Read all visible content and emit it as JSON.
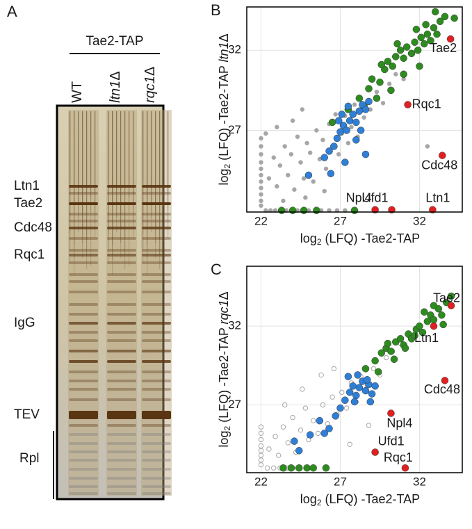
{
  "gel": {
    "panel_label": "A",
    "header": "Tae2-TAP",
    "lanes": [
      {
        "name": "WT"
      },
      {
        "italic": "ltn1",
        "suffix": "Δ"
      },
      {
        "italic": "rqc1",
        "suffix": "Δ"
      }
    ],
    "bands": [
      "Ltn1",
      "Tae2",
      "Cdc48",
      "Rqc1",
      "IgG",
      "TEV",
      "Rpl"
    ]
  },
  "chart_data": [
    {
      "type": "scatter",
      "panel_label": "B",
      "x_label": {
        "base": "log",
        "sub": "2",
        "text": " (LFQ) -Tae2-TAP"
      },
      "y_label": {
        "base": "log",
        "sub": "2",
        "text": " (LFQ) -Tae2-TAP ",
        "italic": "ltn1",
        "suffix": "Δ"
      },
      "xlim": [
        21.1,
        34.7
      ],
      "ylim": [
        21.9,
        34.7
      ],
      "xticks": [
        22,
        27,
        32
      ],
      "yticks": [
        27,
        32
      ],
      "grid": true,
      "series": [
        {
          "color": "#a6a6a6",
          "marker": "filled",
          "x": [
            22,
            22,
            22,
            22,
            22,
            22,
            22,
            22,
            22,
            22,
            22,
            22.3,
            22.6,
            22.9,
            23.2,
            23.6,
            24.3,
            25,
            25.8,
            26.3,
            26.8,
            27.3,
            22.5,
            22.8,
            23,
            23.2,
            23.5,
            23.7,
            23.9,
            24.1,
            24.3,
            24.5,
            24.7,
            24.9,
            25.1,
            25.3,
            25.5,
            25.7,
            25.9,
            26.1,
            26.3,
            26.5,
            26.7,
            26.9,
            27.1,
            27.3,
            27.5,
            27.7,
            27.9,
            28.1,
            28.5,
            28.9,
            29.3,
            29.7,
            30.1,
            30.5,
            31,
            22.3,
            23,
            24,
            24.6,
            23.4,
            24.8,
            26,
            32.5
          ],
          "values": [
            22.3,
            22.6,
            23,
            23.4,
            23.8,
            24.2,
            24.6,
            25,
            25.5,
            26,
            26.5,
            22,
            22,
            22,
            22,
            22,
            22,
            22,
            22,
            22,
            22,
            22,
            24,
            25.3,
            23.5,
            24.8,
            26,
            24.2,
            25.5,
            23.3,
            26.6,
            25,
            24,
            26.2,
            25.6,
            23.8,
            27,
            25.2,
            26.4,
            24.6,
            27.4,
            26,
            28,
            25.5,
            26.8,
            27.9,
            26.2,
            27.2,
            28.6,
            26.6,
            27.8,
            28.3,
            29.4,
            28.7,
            29.9,
            30.5,
            30.2,
            26.8,
            27.2,
            27.6,
            28.3,
            22.6,
            22.8,
            23.2,
            26
          ]
        },
        {
          "color": "#2e8b1f",
          "marker": "filled",
          "x": [
            26.5,
            27.5,
            28.2,
            28.8,
            29,
            29.5,
            29.8,
            30,
            30.3,
            30.5,
            30.8,
            31,
            31.2,
            31.5,
            31.7,
            31.9,
            32.1,
            32.3,
            32.5,
            32.7,
            32.9,
            33.1,
            33.3,
            33.6,
            34.2,
            32,
            31,
            30.2,
            29.3,
            28.5,
            31.8,
            32.4,
            33,
            30.6,
            29.6,
            23.3,
            24,
            24.7,
            25.5,
            27.9
          ],
          "values": [
            27.5,
            28.3,
            29,
            29.6,
            30.2,
            30,
            30.8,
            31.3,
            31,
            31.6,
            32,
            31.5,
            32.2,
            31.8,
            32.5,
            32,
            32.8,
            32.4,
            33,
            32.6,
            33.4,
            33,
            33.8,
            34.1,
            34,
            31,
            30.5,
            29.5,
            29,
            28.5,
            33.3,
            33.6,
            34.4,
            32.4,
            31.1,
            22,
            22,
            22,
            22,
            22
          ]
        },
        {
          "color": "#2f7fd6",
          "marker": "filled",
          "x": [
            26,
            26.3,
            26.6,
            26.8,
            27,
            27.2,
            27.4,
            27.6,
            27.8,
            28,
            28.2,
            28.4,
            28.6,
            28.8,
            27.1,
            27.5,
            26.9,
            28,
            28.6,
            26.4,
            25,
            27.3,
            28.3
          ],
          "values": [
            25.3,
            25.7,
            26,
            26.5,
            26.9,
            27.3,
            27,
            27.6,
            28,
            27.5,
            28.2,
            28.6,
            28.3,
            28.8,
            28,
            28.5,
            27.6,
            26.4,
            25.5,
            24.3,
            24.2,
            25,
            27
          ]
        },
        {
          "color": "#e02020",
          "marker": "filled",
          "x": [
            33.96,
            31.26,
            33.44,
            29.2,
            30.25,
            32.83
          ],
          "values": [
            32.7,
            28.6,
            25.43,
            22.04,
            22.04,
            22.04
          ],
          "labels": [
            "Tae2",
            "Rqc1",
            "Cdc48",
            "Npl4",
            "Ufd1",
            "Ltn1"
          ]
        }
      ]
    },
    {
      "type": "scatter",
      "panel_label": "C",
      "x_label": {
        "base": "log",
        "sub": "2",
        "text": " (LFQ) -Tae2-TAP"
      },
      "y_label": {
        "base": "log",
        "sub": "2",
        "text": " (LFQ) -Tae2-TAP ",
        "italic": "rqc1",
        "suffix": "Δ"
      },
      "xlim": [
        21.1,
        34.7
      ],
      "ylim": [
        22.7,
        35.8
      ],
      "xticks": [
        22,
        27,
        32
      ],
      "yticks": [
        27,
        32
      ],
      "grid": true,
      "series": [
        {
          "color": "#a6a6a6",
          "marker": "open",
          "x": [
            22,
            22,
            22,
            22,
            22,
            22,
            22,
            22,
            22.4,
            22.8,
            23.2,
            23.6,
            24,
            24.4,
            22.5,
            22.9,
            23.1,
            23.4,
            23.7,
            24,
            24.2,
            24.5,
            24.8,
            25,
            25.3,
            25.6,
            25.9,
            26.2,
            26.5,
            26.8,
            27.1,
            27.4,
            27.7,
            28,
            28.3,
            28.7,
            29.1,
            29.5,
            29.9,
            30.3,
            30.8,
            31.3,
            23.5,
            24.6,
            25.8,
            26.6,
            27.6,
            28.8
          ],
          "values": [
            23.2,
            23.5,
            23.8,
            24.1,
            24.4,
            24.8,
            25.2,
            25.6,
            23,
            23,
            23,
            23,
            23,
            23,
            24.2,
            25,
            23.8,
            25.6,
            24.6,
            26.2,
            24,
            25.4,
            26.8,
            24.8,
            26,
            25.2,
            27,
            25.8,
            27.5,
            26.4,
            27.8,
            26.8,
            28.4,
            27.2,
            28.8,
            28.2,
            29.3,
            28.9,
            30,
            30.4,
            30.9,
            31.4,
            27,
            28,
            28.9,
            29.3,
            24.5,
            25.7
          ]
        },
        {
          "color": "#2e8b1f",
          "marker": "filled",
          "x": [
            28.6,
            29.2,
            29.6,
            29.9,
            30.2,
            30.5,
            30.8,
            31,
            31.3,
            31.5,
            31.8,
            32,
            32.2,
            32.5,
            32.7,
            32.9,
            33.2,
            33.4,
            33.7,
            34,
            30.4,
            31.1,
            31.7,
            32.3,
            32.9,
            33.5,
            29.4,
            30,
            23.4,
            23.9,
            24.4,
            24.9,
            25.3,
            26.1
          ],
          "values": [
            29.3,
            29.8,
            30.3,
            30.6,
            30.4,
            31,
            31.2,
            30.8,
            31.5,
            31.2,
            31.8,
            32,
            31.6,
            32.3,
            32.7,
            32.4,
            33.1,
            32.7,
            33.5,
            33.9,
            29.9,
            30.6,
            31.4,
            32.9,
            33.3,
            32.1,
            29.1,
            30.9,
            23,
            23,
            23,
            23,
            23,
            23
          ]
        },
        {
          "color": "#2f7fd6",
          "marker": "filled",
          "x": [
            26.7,
            27,
            27.3,
            27.6,
            27.8,
            28,
            28.2,
            28.4,
            28.6,
            28.8,
            29,
            29.2,
            27.5,
            28.1,
            28.7,
            26.3,
            26,
            25.7,
            25.1,
            24.1,
            24.4,
            27.9,
            28.9
          ],
          "values": [
            26.3,
            26.8,
            27.3,
            27.8,
            28.2,
            27.6,
            28.1,
            28.5,
            27.9,
            28.3,
            27.7,
            28.2,
            28.8,
            28.9,
            28.6,
            25.5,
            25.2,
            26,
            25.1,
            24.7,
            24.1,
            27.2,
            27.2
          ]
        },
        {
          "color": "#e02020",
          "marker": "filled",
          "x": [
            34,
            32.9,
            33.6,
            30.2,
            29.2,
            31.1
          ],
          "values": [
            33.3,
            32,
            28.55,
            26.47,
            24,
            23
          ],
          "labels": [
            "Tae2",
            "Ltn1",
            "Cdc48",
            "Npl4",
            "Ufd1",
            "Rqc1"
          ]
        }
      ]
    }
  ]
}
